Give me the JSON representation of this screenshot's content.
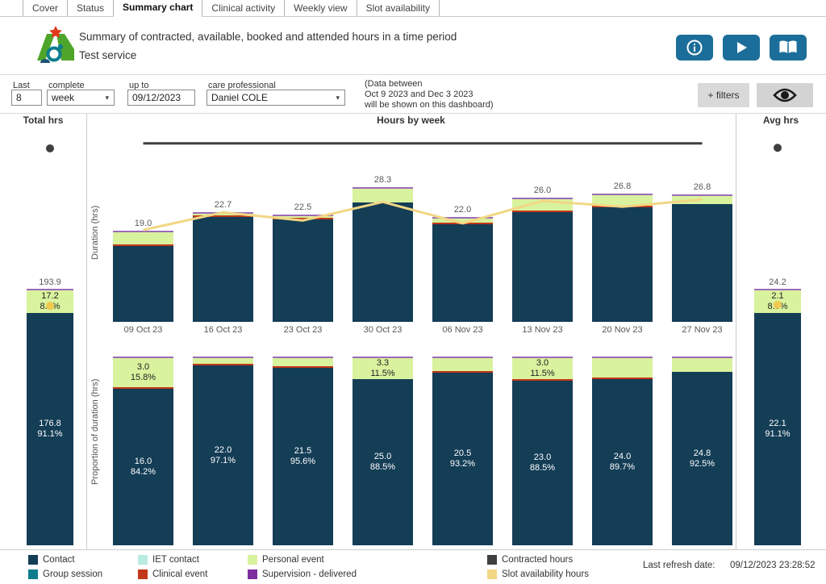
{
  "tabs": [
    {
      "label": "Cover",
      "active": false
    },
    {
      "label": "Status",
      "active": false
    },
    {
      "label": "Summary chart",
      "active": true
    },
    {
      "label": "Clinical activity",
      "active": false
    },
    {
      "label": "Weekly view",
      "active": false
    },
    {
      "label": "Slot availability",
      "active": false
    }
  ],
  "header": {
    "title": "Summary of contracted, available, booked and attended hours in a time period",
    "subtitle": "Test service",
    "buttons": [
      {
        "icon": "info"
      },
      {
        "icon": "play"
      },
      {
        "icon": "book"
      }
    ]
  },
  "filters": {
    "last": {
      "label": "Last",
      "value": "8"
    },
    "complete": {
      "label": "complete",
      "value": "week"
    },
    "up_to": {
      "label": "up to",
      "value": "09/12/2023"
    },
    "care_professional": {
      "label": "care professional",
      "value": "Daniel COLE"
    },
    "note_line1": "(Data between",
    "note_line2": "Oct 9 2023 and Dec 3 2023",
    "note_line3": "will be shown on this dashboard)",
    "filters_button_label": "+ filters"
  },
  "panels": {
    "total_title": "Total hrs",
    "middle_title": "Hours by week",
    "avg_title": "Avg hrs"
  },
  "colors": {
    "contact": "#143d56",
    "group_session": "#0d7d8e",
    "iet_contact": "#b9ebe1",
    "clinical_event": "#c23818",
    "personal_event": "#d9f29e",
    "supervision": "#7d2fa0",
    "supervision_cap": "#9b6cb8",
    "contracted": "#3f3f3f",
    "slot": "#f2d784",
    "slot_dot": "#f0c94f",
    "button_blue": "#1b6e99"
  },
  "chart_data": [
    {
      "type": "bar",
      "title": "Hours by week",
      "ylabel": "Duration (hrs)",
      "ylim": [
        0,
        44
      ],
      "categories": [
        "09 Oct 23",
        "16 Oct 23",
        "23 Oct 23",
        "30 Oct 23",
        "06 Nov 23",
        "13 Nov 23",
        "20 Nov 23",
        "27 Nov 23"
      ],
      "series": [
        {
          "name": "Contact",
          "values": [
            16.0,
            22.0,
            21.5,
            25.0,
            20.5,
            23.0,
            24.0,
            24.8
          ]
        },
        {
          "name": "Clinical event",
          "values": [
            0.3,
            0.3,
            0.3,
            0,
            0.3,
            0.3,
            0.3,
            0
          ]
        },
        {
          "name": "Personal event",
          "values": [
            2.4,
            0.1,
            0.4,
            3.0,
            0.9,
            2.4,
            2.2,
            1.7
          ]
        },
        {
          "name": "Supervision - delivered",
          "values": [
            0.3,
            0.3,
            0.3,
            0.3,
            0.3,
            0.3,
            0.3,
            0.3
          ]
        }
      ],
      "totals": [
        19.0,
        22.7,
        22.5,
        28.3,
        22.0,
        26.0,
        26.8,
        26.8
      ],
      "total_labels": [
        "19.0",
        "22.7",
        "22.5",
        "28.3",
        "22.0",
        "26.0",
        "26.8",
        "26.8"
      ],
      "lines": [
        {
          "name": "Contracted hours",
          "values": [
            37.5,
            37.5,
            37.5,
            37.5,
            37.5,
            37.5,
            37.5,
            37.5
          ]
        },
        {
          "name": "Slot availability hours",
          "values": [
            19.3,
            23.0,
            21.3,
            25.2,
            20.7,
            25.4,
            24.2,
            25.7
          ]
        }
      ],
      "legend_position": "bottom",
      "grid": false
    },
    {
      "type": "stacked-bar-100",
      "ylabel": "Proportion of duration (hrs)",
      "categories": [
        "09 Oct 23",
        "16 Oct 23",
        "23 Oct 23",
        "30 Oct 23",
        "06 Nov 23",
        "13 Nov 23",
        "20 Nov 23",
        "27 Nov 23"
      ],
      "bars": [
        {
          "personal_pct": 15.8,
          "personal_label": [
            "3.0",
            "15.8%"
          ],
          "contact_label": [
            "16.0",
            "84.2%"
          ],
          "clinical": true
        },
        {
          "personal_pct": 2.9,
          "personal_label": null,
          "contact_label": [
            "22.0",
            "97.1%"
          ],
          "clinical": true
        },
        {
          "personal_pct": 4.4,
          "personal_label": null,
          "contact_label": [
            "21.5",
            "95.6%"
          ],
          "clinical": true
        },
        {
          "personal_pct": 11.5,
          "personal_label": [
            "3.3",
            "11.5%"
          ],
          "contact_label": [
            "25.0",
            "88.5%"
          ],
          "clinical": false
        },
        {
          "personal_pct": 6.8,
          "personal_label": null,
          "contact_label": [
            "20.5",
            "93.2%"
          ],
          "clinical": true
        },
        {
          "personal_pct": 11.5,
          "personal_label": [
            "3.0",
            "11.5%"
          ],
          "contact_label": [
            "23.0",
            "88.5%"
          ],
          "clinical": true
        },
        {
          "personal_pct": 10.3,
          "personal_label": null,
          "contact_label": [
            "24.0",
            "89.7%"
          ],
          "clinical": true
        },
        {
          "personal_pct": 7.5,
          "personal_label": null,
          "contact_label": [
            "24.8",
            "92.5%"
          ],
          "clinical": false
        }
      ]
    },
    {
      "type": "bar",
      "title": "Total hrs",
      "total": 193.9,
      "total_label": "193.9",
      "personal": {
        "pct": 8.9,
        "label": [
          "17.2",
          "8.9%"
        ]
      },
      "contact": {
        "label": [
          "176.8",
          "91.1%"
        ]
      },
      "contracted_value": 300,
      "slot_value": 181
    },
    {
      "type": "bar",
      "title": "Avg hrs",
      "total": 24.2,
      "total_label": "24.2",
      "personal": {
        "pct": 8.9,
        "label": [
          "2.1",
          "8.9%"
        ]
      },
      "contact": {
        "label": [
          "22.1",
          "91.1%"
        ]
      },
      "contracted_value": 37.5,
      "slot_value": 22.7
    }
  ],
  "legend": {
    "items": [
      {
        "label": "Contact",
        "color": "#143d56"
      },
      {
        "label": "Group session",
        "color": "#0d7d8e"
      },
      {
        "label": "IET contact",
        "color": "#b9ebe1"
      },
      {
        "label": "Clinical event",
        "color": "#c23818"
      },
      {
        "label": "Personal event",
        "color": "#d9f29e"
      },
      {
        "label": "Supervision - delivered",
        "color": "#7d2fa0"
      },
      {
        "label": "Contracted hours",
        "color": "#3f3f3f"
      },
      {
        "label": "Slot availability hours",
        "color": "#f2d784"
      }
    ]
  },
  "footer": {
    "refresh_label": "Last refresh date:",
    "refresh_value": "09/12/2023 23:28:52"
  }
}
